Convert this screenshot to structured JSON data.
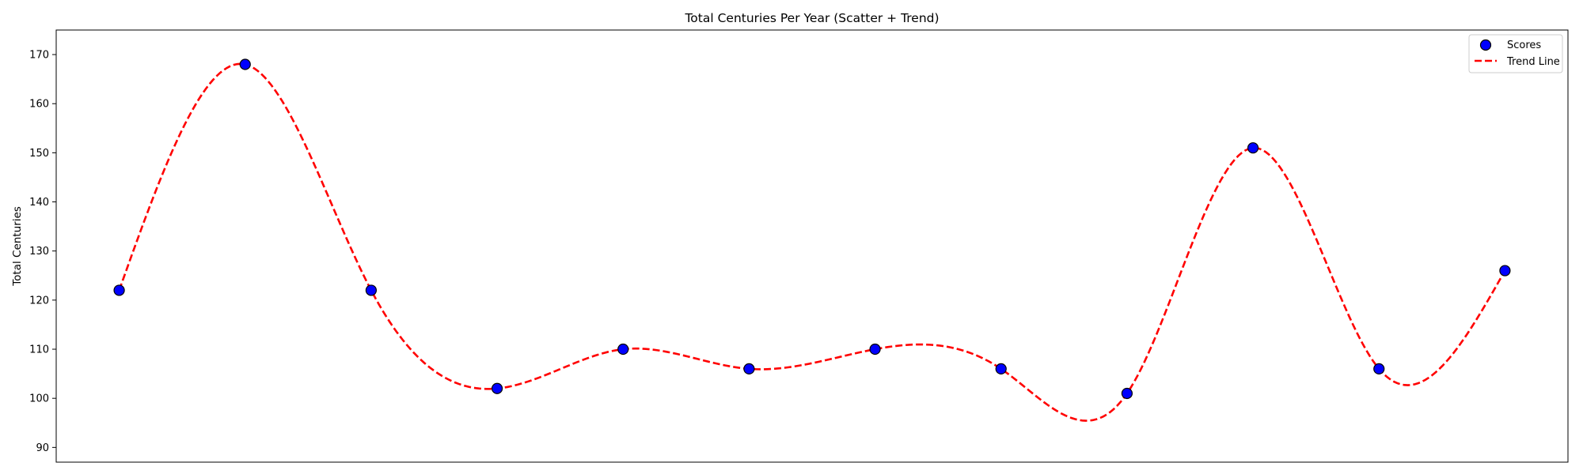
{
  "chart_data": {
    "type": "scatter",
    "title": "Total Centuries Per Year (Scatter + Trend)",
    "xlabel": "",
    "ylabel": "Total Centuries",
    "ylim": [
      87,
      175
    ],
    "yticks": [
      90,
      100,
      110,
      120,
      130,
      140,
      150,
      160,
      170
    ],
    "x_ticks_visible": false,
    "grid": false,
    "legend_position": "top-right",
    "series": [
      {
        "name": "Scores",
        "kind": "scatter",
        "color": "#0000ff",
        "edge_color": "#000000",
        "points": [
          {
            "x": 0,
            "y": 122
          },
          {
            "x": 1,
            "y": 168
          },
          {
            "x": 2,
            "y": 122
          },
          {
            "x": 3,
            "y": 102
          },
          {
            "x": 4,
            "y": 110
          },
          {
            "x": 5,
            "y": 106
          },
          {
            "x": 6,
            "y": 110
          },
          {
            "x": 7,
            "y": 106
          },
          {
            "x": 8,
            "y": 101
          },
          {
            "x": 9,
            "y": 151
          },
          {
            "x": 10,
            "y": 106
          },
          {
            "x": 11,
            "y": 126
          }
        ]
      },
      {
        "name": "Trend Line",
        "kind": "line",
        "style": "dashed",
        "color": "#ff0000",
        "interpolation": "cubic-spline"
      }
    ],
    "xlim": [
      -0.5,
      11.5
    ]
  }
}
